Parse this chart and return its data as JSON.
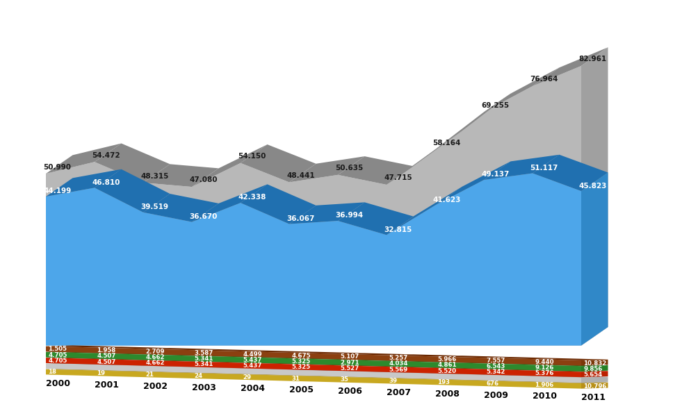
{
  "years": [
    2000,
    2001,
    2002,
    2003,
    2004,
    2005,
    2006,
    2007,
    2008,
    2009,
    2010,
    2011
  ],
  "hydro": [
    44.199,
    46.81,
    39.519,
    36.67,
    42.338,
    36.067,
    36.994,
    32.815,
    41.623,
    49.137,
    51.117,
    45.823
  ],
  "total": [
    50.99,
    54.472,
    48.315,
    47.08,
    54.15,
    48.441,
    50.635,
    47.715,
    58.164,
    69.255,
    76.964,
    82.961
  ],
  "wind": [
    1.505,
    1.958,
    2.709,
    3.587,
    4.499,
    4.675,
    5.107,
    5.257,
    5.966,
    7.557,
    9.44,
    10.832
  ],
  "biomass": [
    4.705,
    4.507,
    4.662,
    5.341,
    5.437,
    5.325,
    2.971,
    4.034,
    4.861,
    6.543,
    9.126,
    9.856
  ],
  "geo": [
    4.705,
    4.507,
    4.662,
    5.341,
    5.437,
    5.325,
    5.527,
    5.569,
    5.52,
    5.342,
    5.376,
    5.654
  ],
  "solar_lbl": [
    "18",
    "19",
    "21",
    "24",
    "29",
    "31",
    "35",
    "39",
    "193",
    "676",
    "1.906",
    "10.796"
  ],
  "geo_lbl": [
    "4.705",
    "4.507",
    "4.662",
    "5.341",
    "5.437",
    "5.325",
    "5.527",
    "5.569",
    "5.520",
    "5.342",
    "5.376",
    "5.654"
  ],
  "wind_lbl": [
    "1.505",
    "1.958",
    "2.709",
    "3.587",
    "4.499",
    "4.675",
    "5.107",
    "5.257",
    "5.966",
    "7.557",
    "9.440",
    "10.832"
  ],
  "bio_lbl": [
    "4.705",
    "4.507",
    "4.662",
    "5.341",
    "5.437",
    "5.325",
    "2.971",
    "4.034",
    "4.861",
    "6.543",
    "9.126",
    "9.856"
  ],
  "hydro_lbl": [
    "44.199",
    "46.810",
    "39.519",
    "36.670",
    "42.338",
    "36.067",
    "36.994",
    "32.815",
    "41.623",
    "49.137",
    "51.117",
    "45.823"
  ],
  "total_lbl": [
    "50.990",
    "54.472",
    "48.315",
    "47.080",
    "54.150",
    "48.441",
    "50.635",
    "47.715",
    "58.164",
    "69.255",
    "76.964",
    "82.961"
  ]
}
